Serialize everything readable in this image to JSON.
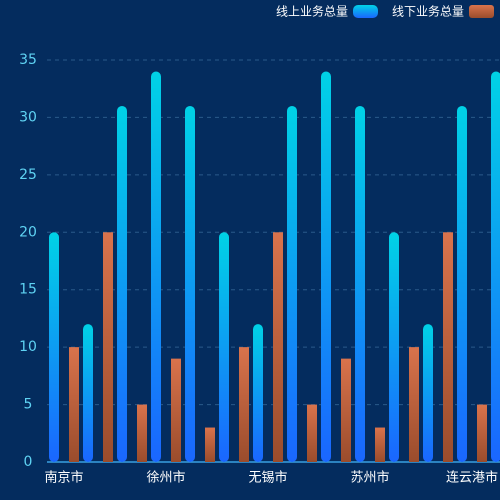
{
  "chart_data": {
    "type": "bar",
    "categories": [
      "南京市",
      null,
      null,
      "徐州市",
      null,
      null,
      "无锡市",
      null,
      null,
      "苏州市",
      null,
      null,
      "连云港市",
      null
    ],
    "series": [
      {
        "name": "线上业务总量",
        "color": "#00d2e6",
        "values": [
          20,
          12,
          31,
          34,
          31,
          20,
          12,
          31,
          34,
          31,
          20,
          12,
          31,
          34
        ]
      },
      {
        "name": "线下业务总量",
        "color": "#d9734c",
        "values": [
          10,
          20,
          5,
          9,
          3,
          10,
          20,
          5,
          9,
          3,
          10,
          20,
          5,
          null
        ]
      }
    ],
    "ylim": [
      0,
      35
    ],
    "yticks": [
      0,
      5,
      10,
      15,
      20,
      25,
      30,
      35
    ],
    "grid": true,
    "legend": "top-right"
  }
}
